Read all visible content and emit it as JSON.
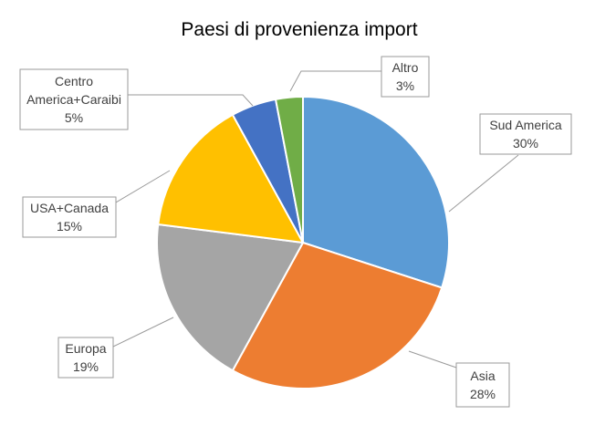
{
  "chart_data": {
    "type": "pie",
    "title": "Paesi di provenienza import",
    "slices": [
      {
        "label": "Sud America",
        "label_lines": [
          "Sud America"
        ],
        "value": 30,
        "value_label": "30%",
        "color": "#5b9bd5"
      },
      {
        "label": "Asia",
        "label_lines": [
          "Asia"
        ],
        "value": 28,
        "value_label": "28%",
        "color": "#ed7d31"
      },
      {
        "label": "Europa",
        "label_lines": [
          "Europa"
        ],
        "value": 19,
        "value_label": "19%",
        "color": "#a5a5a5"
      },
      {
        "label": "USA+Canada",
        "label_lines": [
          "USA+Canada"
        ],
        "value": 15,
        "value_label": "15%",
        "color": "#ffc000"
      },
      {
        "label": "Centro America+Caraibi",
        "label_lines": [
          "Centro",
          "America+Caraibi"
        ],
        "value": 5,
        "value_label": "5%",
        "color": "#4472c4"
      },
      {
        "label": "Altro",
        "label_lines": [
          "Altro"
        ],
        "value": 3,
        "value_label": "3%",
        "color": "#70ad47"
      }
    ],
    "start_direction": "12 o'clock",
    "direction": "clockwise",
    "legend": "none",
    "data_labels": "callouts with leader lines"
  }
}
